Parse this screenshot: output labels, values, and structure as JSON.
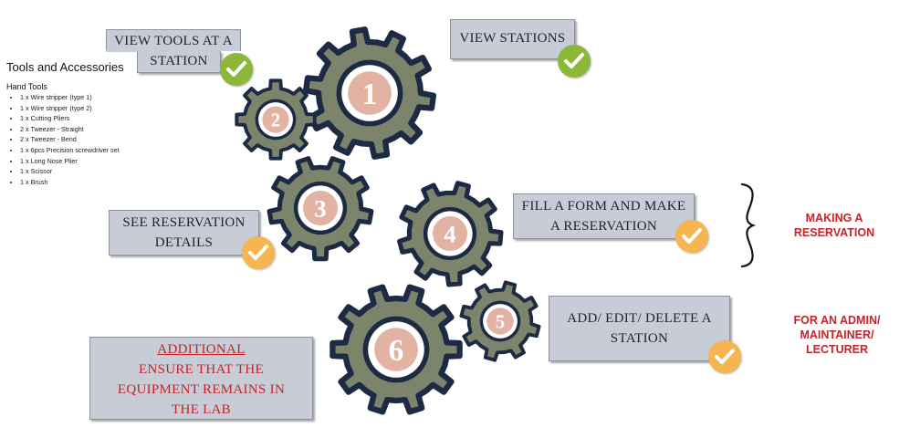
{
  "sidebar": {
    "title": "Tools and Accessories",
    "section_heading": "Hand Tools",
    "items": [
      "1 x Wire stripper (type 1)",
      "1 x Wire stripper (type 2)",
      "1 x Cutting Pliers",
      "2 x Tweezer - Straight",
      "2 x Tweezer - Bend",
      "1 x 6pcs Precision screwdriver set",
      "1 x Long Nose Plier",
      "1 x Scissor",
      "1 x Brush"
    ]
  },
  "steps": {
    "view_tools": {
      "line1": "VIEW TOOLS AT A",
      "line2": "STATION"
    },
    "view_stations": {
      "label": "VIEW STATIONS"
    },
    "see_reservation": {
      "line1": "SEE RESERVATION",
      "line2": "DETAILS"
    },
    "fill_form": {
      "line1": "FILL A FORM AND MAKE",
      "line2": "A RESERVATION"
    },
    "add_edit_delete": {
      "line1": "ADD/ EDIT/ DELETE A",
      "line2": "STATION"
    }
  },
  "additional": {
    "heading": "ADDITIONAL",
    "line1": "ENSURE THAT THE",
    "line2": "EQUIPMENT REMAINS IN",
    "line3": "THE LAB"
  },
  "gears": [
    "1",
    "2",
    "3",
    "4",
    "5",
    "6"
  ],
  "side_labels": {
    "making_reservation": {
      "line1": "MAKING A",
      "line2": "RESERVATION"
    },
    "admin": {
      "line1": "FOR AN ADMIN/",
      "line2": "MAINTAINER/",
      "line3": "LECTURER"
    }
  },
  "colors": {
    "gear_fill": "#7d846c",
    "gear_outline": "#1c2a44",
    "gear_hub": "#e2b3a3",
    "box_fill": "#c7ccd6",
    "check_green": "#8cb83a",
    "check_orange": "#f6b54e",
    "accent_red": "#c0262a"
  },
  "icons": [
    "check-icon",
    "gear-icon",
    "curly-brace-icon"
  ]
}
